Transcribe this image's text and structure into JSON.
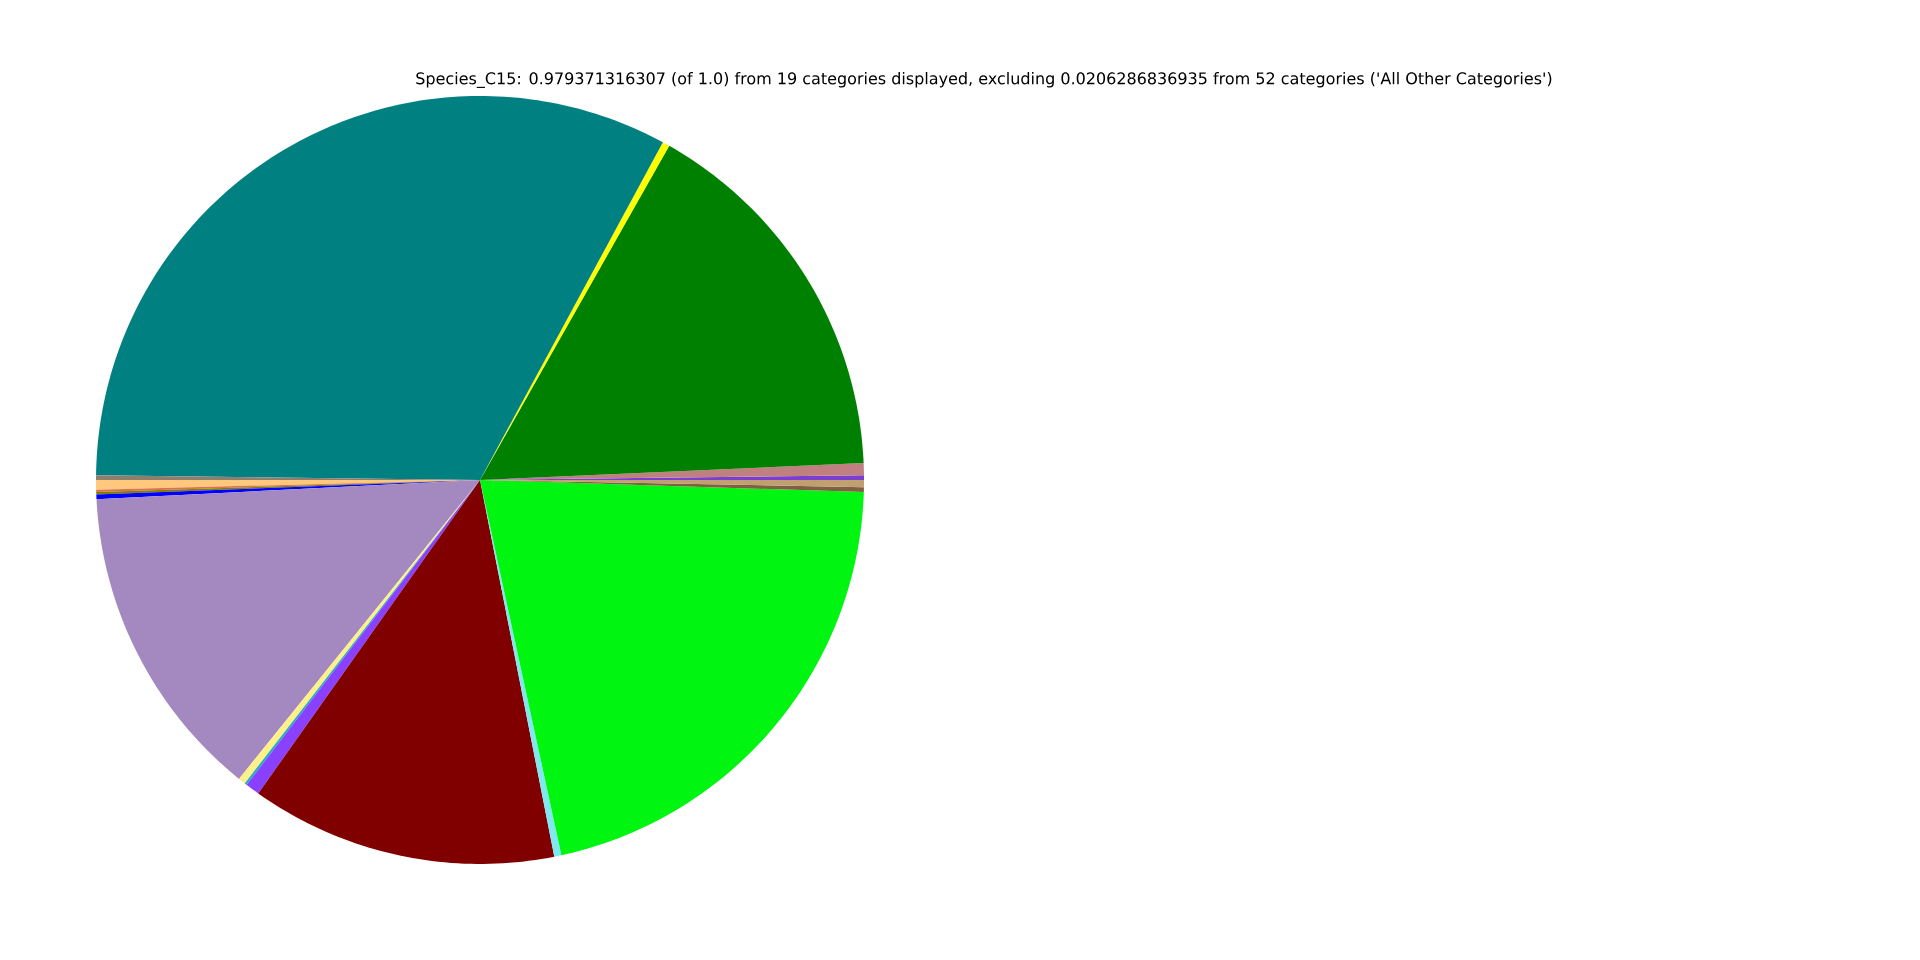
{
  "chart_data": {
    "type": "pie",
    "title": "Species_C15: 0.979371316307 (of 1.0) from 19 categories displayed, excluding 0.0206286836935 from 52 categories ('All Other Categories')",
    "categories": [
      null,
      null,
      null,
      null,
      null,
      null,
      null,
      null,
      null,
      null,
      null,
      null,
      null,
      null,
      null,
      null,
      null,
      null,
      null
    ],
    "values": [
      0.2,
      0.5,
      16.1,
      0.3,
      32.7,
      0.2,
      0.4,
      0.1,
      0.1,
      0.2,
      13.4,
      0.3,
      0.1,
      0.6,
      12.9,
      0.3,
      21.1,
      0.2,
      0.3
    ],
    "colors": [
      "#7b3fd0",
      "#c08080",
      "#008000",
      "#ffff00",
      "#008080",
      "#8c7f70",
      "#ffc87c",
      "#e07050",
      "#808000",
      "#0000ff",
      "#a389c0",
      "#fff08a",
      "#20b0c0",
      "#8a40ff",
      "#800000",
      "#80e8f0",
      "#00f510",
      "#806040",
      "#c0a070"
    ]
  }
}
